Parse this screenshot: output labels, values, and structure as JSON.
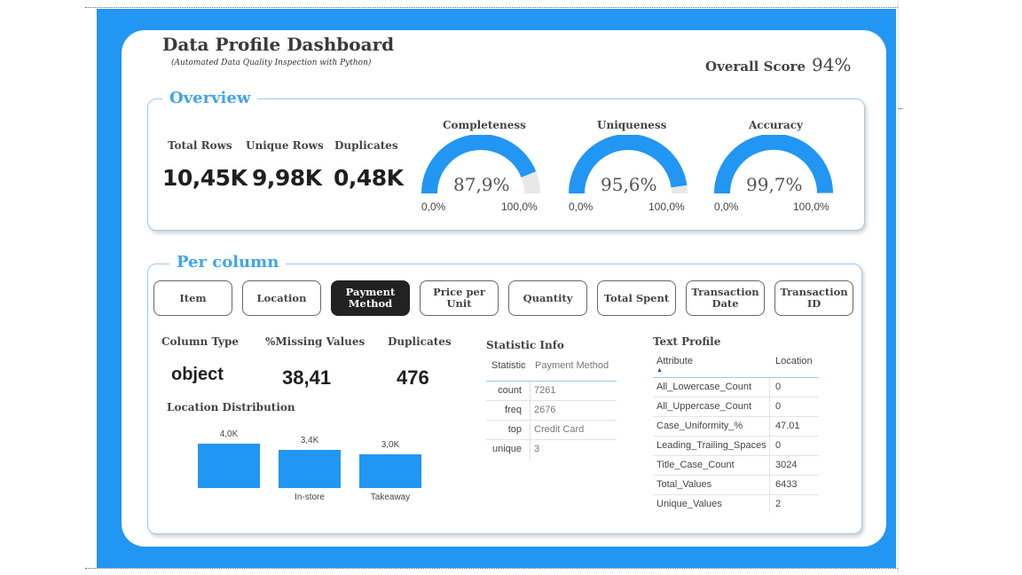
{
  "header": {
    "title": "Data Profile Dashboard",
    "subtitle": "(Automated Data Quality Inspection with Python)",
    "overall_label": "Overall Score",
    "overall_value": "94%"
  },
  "colors": {
    "frame": "#2196f3",
    "accent": "#40a4ea",
    "gauge_track": "#e8e8e8"
  },
  "overview": {
    "title": "Overview",
    "kpis": [
      {
        "label": "Total Rows",
        "value": "10,45K"
      },
      {
        "label": "Unique Rows",
        "value": "9,98K"
      },
      {
        "label": "Duplicates",
        "value": "0,48K"
      }
    ],
    "gauges": [
      {
        "label": "Completeness",
        "display": "87,9%",
        "value": 87.9,
        "min": "0,0%",
        "max": "100,0%"
      },
      {
        "label": "Uniqueness",
        "display": "95,6%",
        "value": 95.6,
        "min": "0,0%",
        "max": "100,0%"
      },
      {
        "label": "Accuracy",
        "display": "99,7%",
        "value": 99.7,
        "min": "0,0%",
        "max": "100,0%"
      }
    ]
  },
  "per_column": {
    "title": "Per column",
    "tabs": [
      "Item",
      "Location",
      "Payment Method",
      "Price per Unit",
      "Quantity",
      "Total Spent",
      "Transaction Date",
      "Transaction ID"
    ],
    "active_tab": "Payment Method",
    "stats": [
      {
        "label": "Column Type",
        "value": "object"
      },
      {
        "label": "%Missing Values",
        "value": "38,41"
      },
      {
        "label": "Duplicates",
        "value": "476"
      }
    ],
    "distribution_title": "Location Distribution",
    "statistic_info": {
      "title": "Statistic Info",
      "headers": [
        "Statistic",
        "Payment Method"
      ],
      "rows": [
        [
          "count",
          "7261"
        ],
        [
          "freq",
          "2676"
        ],
        [
          "top",
          "Credit Card"
        ],
        [
          "unique",
          "3"
        ]
      ]
    },
    "text_profile": {
      "title": "Text Profile",
      "headers": [
        "Attribute",
        "Location"
      ],
      "sort_icon": "▲",
      "rows": [
        [
          "All_Lowercase_Count",
          "0"
        ],
        [
          "All_Uppercase_Count",
          "0"
        ],
        [
          "Case_Uniformity_%",
          "47.01"
        ],
        [
          "Leading_Trailing_Spaces",
          "0"
        ],
        [
          "Title_Case_Count",
          "3024"
        ],
        [
          "Total_Values",
          "6433"
        ],
        [
          "Unique_Values",
          "2"
        ]
      ]
    }
  },
  "chart_data": {
    "type": "bar",
    "title": "Location Distribution",
    "categories": [
      "",
      "In-store",
      "Takeaway"
    ],
    "values": [
      4.0,
      3.4,
      3.0
    ],
    "value_labels": [
      "4,0K",
      "3,4K",
      "3,0K"
    ],
    "ylim": [
      0,
      4.0
    ],
    "xlabel": "",
    "ylabel": ""
  }
}
